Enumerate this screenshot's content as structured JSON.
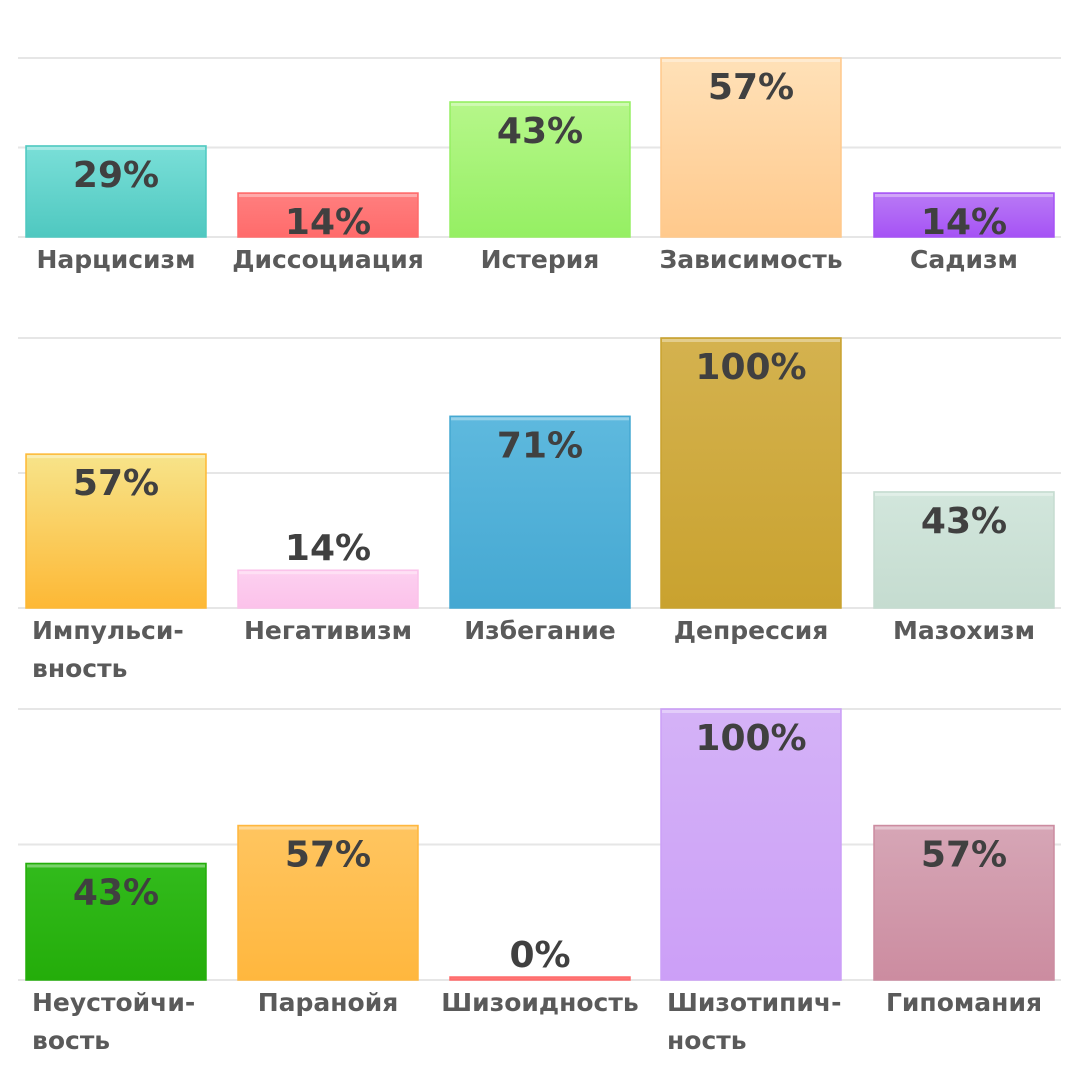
{
  "colors": {
    "grid": "#e6e6e6",
    "value_text": "#404040",
    "label_text": "#5a5a5a"
  },
  "chart_data": [
    {
      "type": "bar",
      "ylim": [
        0,
        57
      ],
      "grid": true,
      "categories": [
        [
          "Нарцисизм"
        ],
        [
          "Диссоциация"
        ],
        [
          "Истерия"
        ],
        [
          "Зависимость"
        ],
        [
          "Садизм"
        ]
      ],
      "values": [
        29,
        14,
        43,
        57,
        14
      ],
      "value_labels": [
        "29%",
        "14%",
        "43%",
        "57%",
        "14%"
      ],
      "bar_colors": [
        [
          "#7adfd8",
          "#4fc8c0"
        ],
        [
          "#ff7f7f",
          "#ff6b6b"
        ],
        [
          "#b6f78a",
          "#95ef63"
        ],
        [
          "#ffe1b8",
          "#ffc98c"
        ],
        [
          "#b97af5",
          "#a653f5"
        ]
      ]
    },
    {
      "type": "bar",
      "ylim": [
        0,
        100
      ],
      "grid": true,
      "categories": [
        [
          "Импульси-",
          "вность"
        ],
        [
          "Негативизм"
        ],
        [
          "Избегание"
        ],
        [
          "Депрессия"
        ],
        [
          "Мазохизм"
        ]
      ],
      "values": [
        57,
        14,
        71,
        100,
        43
      ],
      "value_labels": [
        "57%",
        "14%",
        "71%",
        "100%",
        "43%"
      ],
      "bar_colors": [
        [
          "#f7e48a",
          "#fdb835"
        ],
        [
          "#fdd0f0",
          "#fbc2ea"
        ],
        [
          "#5eb9de",
          "#45a8d2"
        ],
        [
          "#d4b24f",
          "#c9a22f"
        ],
        [
          "#d2e6dc",
          "#c5dcd0"
        ]
      ]
    },
    {
      "type": "bar",
      "ylim": [
        0,
        100
      ],
      "grid": true,
      "categories": [
        [
          "Неустойчи-",
          "вость"
        ],
        [
          "Паранойя"
        ],
        [
          "Шизоидность"
        ],
        [
          "Шизотипич-",
          "ность"
        ],
        [
          "Гипомания"
        ]
      ],
      "values": [
        43,
        57,
        0,
        100,
        57
      ],
      "value_labels": [
        "43%",
        "57%",
        "0%",
        "100%",
        "57%"
      ],
      "bar_colors": [
        [
          "#32bb1c",
          "#24ad0a"
        ],
        [
          "#ffc560",
          "#ffb73e"
        ],
        [
          "#ff7f7f",
          "#ff6b6b"
        ],
        [
          "#d4b2f7",
          "#cc9ff7"
        ],
        [
          "#d6a6b6",
          "#cc8ca0"
        ]
      ]
    }
  ]
}
